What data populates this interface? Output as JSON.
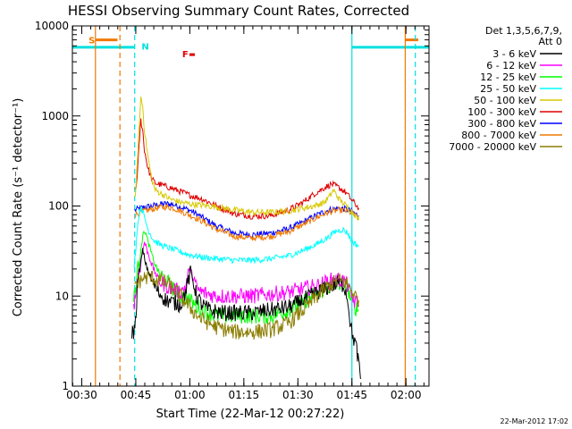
{
  "chart_data": {
    "type": "line",
    "title": "HESSI Observing Summary Count Rates, Corrected",
    "xlabel": "Start Time (22-Mar-12 00:27:22)",
    "ylabel": "Corrected Count Rate (s⁻¹ detector⁻¹)",
    "yscale": "log",
    "ylim": [
      1,
      10000
    ],
    "xlim_minutes": [
      0,
      99
    ],
    "x_tick_labels": [
      "00:30",
      "00:45",
      "01:00",
      "01:15",
      "01:30",
      "01:45",
      "02:00"
    ],
    "x_tick_minutes": [
      2.6,
      17.6,
      32.6,
      47.6,
      62.6,
      77.6,
      92.6
    ],
    "y_tick_labels": [
      "1",
      "10",
      "100",
      "1000",
      "10000"
    ],
    "y_tick_values": [
      1,
      10,
      100,
      1000,
      10000
    ],
    "legend_header": [
      "Det 1,3,5,6,7,9,",
      "Att 0"
    ],
    "footer_date": "22-Mar-2012 17:02",
    "annotations": [
      {
        "label": "S",
        "color": "#f07800",
        "minute": 4.5,
        "value": 7000
      },
      {
        "label": "N",
        "color": "#00e0e0",
        "minute": 19.2,
        "value": 6000
      },
      {
        "label": "F",
        "color": "#e00000",
        "minute": 30.5,
        "value": 4900
      }
    ],
    "bars": [
      {
        "name": "S-left",
        "color": "#f07800",
        "from": 6.5,
        "to": 12.5,
        "value": 7000
      },
      {
        "name": "N-left",
        "color": "#00e0e0",
        "from": 0,
        "to": 17.3,
        "value": 5800
      },
      {
        "name": "F",
        "color": "#e00000",
        "from": 32.5,
        "to": 34.0,
        "value": 4800
      },
      {
        "name": "N-right",
        "color": "#00e0e0",
        "from": 77.6,
        "to": 99,
        "value": 5800
      },
      {
        "name": "S-right",
        "color": "#f07800",
        "from": 92.4,
        "to": 96,
        "value": 7000
      }
    ],
    "vlines": [
      {
        "minute": 6.4,
        "color": "#f07800",
        "dash": false
      },
      {
        "minute": 13.2,
        "color": "#f07800",
        "dash": true
      },
      {
        "minute": 17.3,
        "color": "#00e0e0",
        "dash": true
      },
      {
        "minute": 77.6,
        "color": "#00e0e0",
        "dash": false
      },
      {
        "minute": 92.4,
        "color": "#f07800",
        "dash": false
      },
      {
        "minute": 95.2,
        "color": "#00e0e0",
        "dash": true
      }
    ],
    "series": [
      {
        "name": "3 - 6 keV",
        "color": "#000000",
        "x": [
          16.5,
          17.0,
          17.5,
          18.0,
          18.7,
          19.5,
          20.5,
          22.0,
          24.0,
          26.0,
          28.0,
          30.0,
          31.0,
          32.0,
          32.8,
          33.5,
          34.5,
          36.0,
          38.0,
          42.0,
          46.0,
          50.0,
          55.0,
          60.0,
          64.0,
          68.0,
          72.0,
          74.0,
          75.5,
          76.5,
          77.3,
          77.9,
          78.6,
          79.3,
          80.0
        ],
        "y": [
          4,
          4,
          5,
          12,
          20,
          32,
          22,
          15,
          11,
          9,
          8.5,
          8,
          10,
          14,
          18,
          15,
          10,
          8,
          7,
          6.5,
          6.5,
          6.5,
          7,
          7.5,
          9,
          11,
          13,
          14,
          13,
          9,
          4.5,
          3.5,
          3,
          2,
          1.2
        ]
      },
      {
        "name": "6 - 12 keV",
        "color": "#ff00ff",
        "x": [
          17.0,
          17.5,
          18.0,
          19.0,
          20.0,
          21.0,
          22.5,
          24.0,
          26.0,
          28.0,
          30.0,
          31.5,
          32.5,
          33.5,
          34.5,
          36.0,
          40.0,
          45.0,
          50.0,
          55.0,
          60.0,
          64.0,
          68.0,
          72.0,
          75.0,
          76.5,
          77.3,
          78.5,
          79.5
        ],
        "y": [
          8,
          10,
          14,
          24,
          40,
          30,
          20,
          15,
          13,
          12,
          11,
          13,
          20,
          17,
          12,
          11,
          10,
          10,
          10,
          10.5,
          11,
          12,
          13,
          15,
          15,
          13,
          10,
          8.5,
          8
        ]
      },
      {
        "name": "12 - 25 keV",
        "color": "#00ff00",
        "x": [
          17.0,
          17.5,
          18.0,
          19.0,
          20.0,
          21.0,
          22.5,
          24.0,
          26.0,
          28.0,
          30.0,
          32.0,
          34.0,
          36.0,
          40.0,
          45.0,
          50.0,
          55.0,
          60.0,
          64.0,
          68.0,
          72.0,
          75.0,
          76.5,
          77.3,
          78.5,
          79.5
        ],
        "y": [
          9,
          12,
          18,
          35,
          55,
          40,
          25,
          18,
          15,
          12,
          10,
          9.5,
          8,
          7,
          6,
          6,
          6,
          6,
          7,
          8.5,
          11,
          13,
          14,
          12,
          9,
          7.5,
          7
        ]
      },
      {
        "name": "25 - 50 keV",
        "color": "#00ffff",
        "x": [
          17.0,
          17.5,
          18.0,
          18.5,
          19.0,
          20.0,
          21.0,
          22.5,
          24.0,
          26.0,
          28.0,
          30.0,
          32.0,
          34.0,
          36.0,
          40.0,
          45.0,
          50.0,
          55.0,
          60.0,
          64.0,
          68.0,
          71.0,
          73.0,
          75.0,
          76.5,
          77.3,
          78.5,
          79.5
        ],
        "y": [
          20,
          30,
          55,
          80,
          100,
          75,
          55,
          42,
          38,
          35,
          33,
          31,
          29,
          28,
          27,
          26,
          25,
          25,
          26,
          28,
          32,
          38,
          45,
          52,
          55,
          50,
          42,
          38,
          36
        ]
      },
      {
        "name": "50 - 100 keV",
        "color": "#d8c800",
        "x": [
          17.3,
          17.7,
          18.0,
          18.5,
          19.0,
          19.5,
          20.0,
          21.0,
          22.0,
          23.0,
          25.0,
          27.0,
          30.0,
          33.0,
          36.0,
          40.0,
          45.0,
          50.0,
          55.0,
          60.0,
          64.0,
          67.0,
          70.0,
          71.5,
          72.5,
          74.0,
          76.0,
          77.3,
          78.5,
          79.5
        ],
        "y": [
          120,
          160,
          300,
          700,
          1600,
          1300,
          700,
          350,
          200,
          150,
          135,
          120,
          110,
          105,
          102,
          98,
          90,
          85,
          85,
          88,
          95,
          100,
          110,
          130,
          150,
          120,
          100,
          90,
          80,
          70
        ]
      },
      {
        "name": "100 - 300 keV",
        "color": "#e00000",
        "x": [
          17.3,
          17.7,
          18.0,
          18.5,
          19.0,
          19.5,
          20.0,
          21.0,
          22.0,
          23.0,
          25.0,
          27.0,
          30.0,
          33.0,
          36.0,
          40.0,
          45.0,
          50.0,
          55.0,
          60.0,
          64.0,
          67.0,
          70.0,
          72.0,
          74.0,
          76.0,
          77.3,
          78.5,
          79.5
        ],
        "y": [
          145,
          160,
          220,
          450,
          900,
          700,
          420,
          260,
          200,
          180,
          170,
          160,
          145,
          130,
          120,
          100,
          82,
          77,
          78,
          90,
          110,
          135,
          160,
          175,
          160,
          140,
          120,
          105,
          95
        ]
      },
      {
        "name": "300 - 800 keV",
        "color": "#0000ff",
        "x": [
          17.3,
          18.0,
          19.0,
          20.0,
          22.0,
          24.0,
          26.0,
          28.0,
          30.0,
          33.0,
          36.0,
          40.0,
          45.0,
          50.0,
          55.0,
          60.0,
          64.0,
          68.0,
          71.0,
          74.0,
          76.0,
          77.3,
          78.5,
          79.5
        ],
        "y": [
          90,
          92,
          95,
          97,
          100,
          104,
          106,
          104,
          98,
          88,
          75,
          60,
          50,
          48,
          50,
          56,
          66,
          80,
          90,
          95,
          92,
          88,
          82,
          78
        ]
      },
      {
        "name": "800 - 7000 keV",
        "color": "#f07800",
        "x": [
          17.3,
          18.0,
          19.0,
          20.0,
          22.0,
          24.0,
          26.0,
          28.0,
          30.0,
          33.0,
          36.0,
          40.0,
          45.0,
          50.0,
          55.0,
          60.0,
          64.0,
          68.0,
          71.0,
          74.0,
          76.0,
          77.3,
          78.5,
          79.5
        ],
        "y": [
          80,
          82,
          85,
          88,
          92,
          96,
          98,
          95,
          88,
          78,
          68,
          55,
          46,
          44,
          46,
          52,
          62,
          75,
          85,
          90,
          88,
          84,
          78,
          74
        ]
      },
      {
        "name": "7000 - 20000 keV",
        "color": "#8b7d00",
        "x": [
          17.3,
          18.0,
          19.0,
          20.0,
          22.0,
          24.0,
          26.0,
          28.0,
          30.0,
          32.0,
          34.0,
          36.0,
          40.0,
          45.0,
          50.0,
          55.0,
          60.0,
          64.0,
          68.0,
          71.0,
          74.0,
          76.0,
          77.3,
          78.5,
          79.5
        ],
        "y": [
          14,
          14,
          15,
          16,
          16,
          15,
          14,
          12,
          10,
          8,
          6.5,
          5.5,
          4.5,
          4,
          4,
          4.2,
          5,
          7,
          10,
          13,
          15,
          14,
          12,
          10,
          9
        ]
      }
    ]
  }
}
